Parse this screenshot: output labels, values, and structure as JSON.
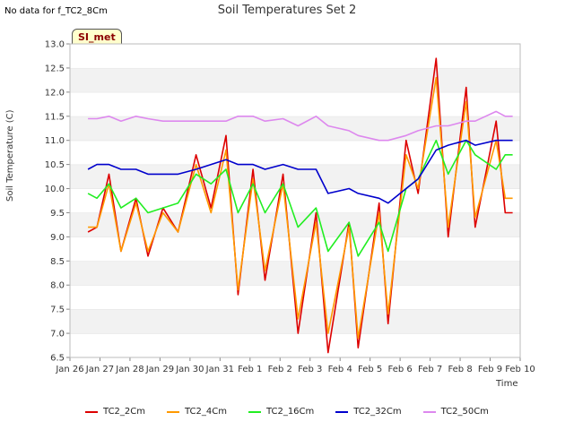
{
  "header": {
    "no_data_note": "No data for f_TC2_8Cm",
    "badge": "SI_met"
  },
  "colors": {
    "TC2_2Cm": "#dd0000",
    "TC2_4Cm": "#ff9900",
    "TC2_16Cm": "#22ee22",
    "TC2_32Cm": "#0000cc",
    "TC2_50Cm": "#dd88ee"
  },
  "chart_data": {
    "type": "line",
    "title": "Soil Temperatures Set 2",
    "xlabel": "Time",
    "ylabel": "Soil Temperature (C)",
    "ylim": [
      6.5,
      13.0
    ],
    "yticks": [
      "6.5",
      "7.0",
      "7.5",
      "8.0",
      "8.5",
      "9.0",
      "9.5",
      "10.0",
      "10.5",
      "11.0",
      "11.5",
      "12.0",
      "12.5",
      "13.0"
    ],
    "xlim": [
      0,
      15
    ],
    "xtick_labels": [
      "Jan 26",
      "Jan 27",
      "Jan 28",
      "Jan 29",
      "Jan 30",
      "Jan 31",
      "Feb 1",
      "Feb 2",
      "Feb 3",
      "Feb 4",
      "Feb 5",
      "Feb 6",
      "Feb 7",
      "Feb 8",
      "Feb 9",
      "Feb 10"
    ],
    "grid": "horizontal bands",
    "legend": "bottom",
    "x": [
      0.6,
      0.9,
      1.3,
      1.7,
      2.2,
      2.6,
      3.1,
      3.6,
      4.2,
      4.7,
      5.2,
      5.6,
      6.1,
      6.5,
      7.1,
      7.6,
      8.2,
      8.6,
      9.3,
      9.6,
      10.3,
      10.6,
      11.2,
      11.6,
      12.2,
      12.6,
      13.2,
      13.5,
      14.2,
      14.5,
      14.75
    ],
    "series": [
      {
        "name": "TC2_2Cm",
        "values": [
          9.1,
          9.2,
          10.3,
          8.7,
          9.8,
          8.6,
          9.6,
          9.1,
          10.7,
          9.6,
          11.1,
          7.8,
          10.4,
          8.1,
          10.3,
          7.0,
          9.5,
          6.6,
          9.3,
          6.7,
          9.7,
          7.2,
          11.0,
          9.9,
          12.7,
          9.0,
          12.1,
          9.2,
          11.4,
          9.5,
          9.5
        ]
      },
      {
        "name": "TC2_4Cm",
        "values": [
          9.2,
          9.2,
          10.1,
          8.7,
          9.7,
          8.7,
          9.5,
          9.1,
          10.5,
          9.5,
          10.8,
          7.9,
          10.2,
          8.3,
          10.1,
          7.3,
          9.3,
          7.0,
          9.2,
          6.9,
          9.5,
          7.4,
          10.7,
          10.0,
          12.3,
          9.2,
          11.8,
          9.4,
          11.0,
          9.8,
          9.8
        ]
      },
      {
        "name": "TC2_16Cm",
        "values": [
          9.9,
          9.8,
          10.1,
          9.6,
          9.8,
          9.5,
          9.6,
          9.7,
          10.3,
          10.1,
          10.4,
          9.5,
          10.1,
          9.5,
          10.1,
          9.2,
          9.6,
          8.7,
          9.3,
          8.6,
          9.3,
          8.7,
          10.0,
          10.2,
          11.0,
          10.3,
          11.0,
          10.7,
          10.4,
          10.7,
          10.7
        ]
      },
      {
        "name": "TC2_32Cm",
        "values": [
          10.4,
          10.5,
          10.5,
          10.4,
          10.4,
          10.3,
          10.3,
          10.3,
          10.4,
          10.5,
          10.6,
          10.5,
          10.5,
          10.4,
          10.5,
          10.4,
          10.4,
          9.9,
          10.0,
          9.9,
          9.8,
          9.7,
          10.0,
          10.2,
          10.8,
          10.9,
          11.0,
          10.9,
          11.0,
          11.0,
          11.0
        ]
      },
      {
        "name": "TC2_50Cm",
        "values": [
          11.45,
          11.45,
          11.5,
          11.4,
          11.5,
          11.45,
          11.4,
          11.4,
          11.4,
          11.4,
          11.4,
          11.5,
          11.5,
          11.4,
          11.45,
          11.3,
          11.5,
          11.3,
          11.2,
          11.1,
          11.0,
          11.0,
          11.1,
          11.2,
          11.3,
          11.3,
          11.4,
          11.4,
          11.6,
          11.5,
          11.5
        ]
      }
    ]
  }
}
